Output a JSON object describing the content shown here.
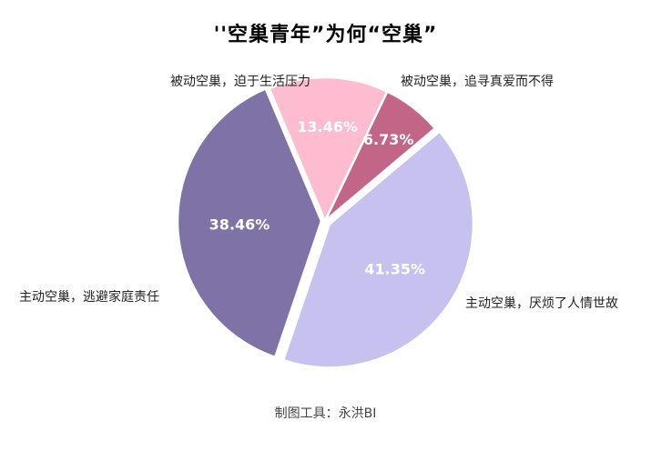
{
  "title": "''空巢青年”为何“空巢”",
  "footer": "制图工具：永洪BI",
  "labels": {
    "l0": "被动空巢，迫于生活压力",
    "l1": "被动空巢，追寻真爱而不得",
    "l2": "主动空巢，厌烦了人情世故",
    "l3": "主动空巢，逃避家庭责任",
    "p0": "13.46%",
    "p1": "6.73%",
    "p2": "41.35%",
    "p3": "38.46%"
  },
  "chart_data": {
    "type": "pie",
    "title": "''空巢青年”为何“空巢”",
    "categories": [
      "被动空巢，迫于生活压力",
      "被动空巢，追寻真爱而不得",
      "主动空巢，厌烦了人情世故",
      "主动空巢，逃避家庭责任"
    ],
    "values": [
      13.46,
      6.73,
      41.35,
      38.46
    ],
    "unit": "%",
    "colors": [
      "#FDBCD0",
      "#C36586",
      "#C7C1F0",
      "#7F72A6"
    ],
    "data_labels": [
      "13.46%",
      "6.73%",
      "41.35%",
      "38.46%"
    ],
    "legend": "none (category labels placed outside slices)",
    "source_note": "制图工具：永洪BI"
  }
}
